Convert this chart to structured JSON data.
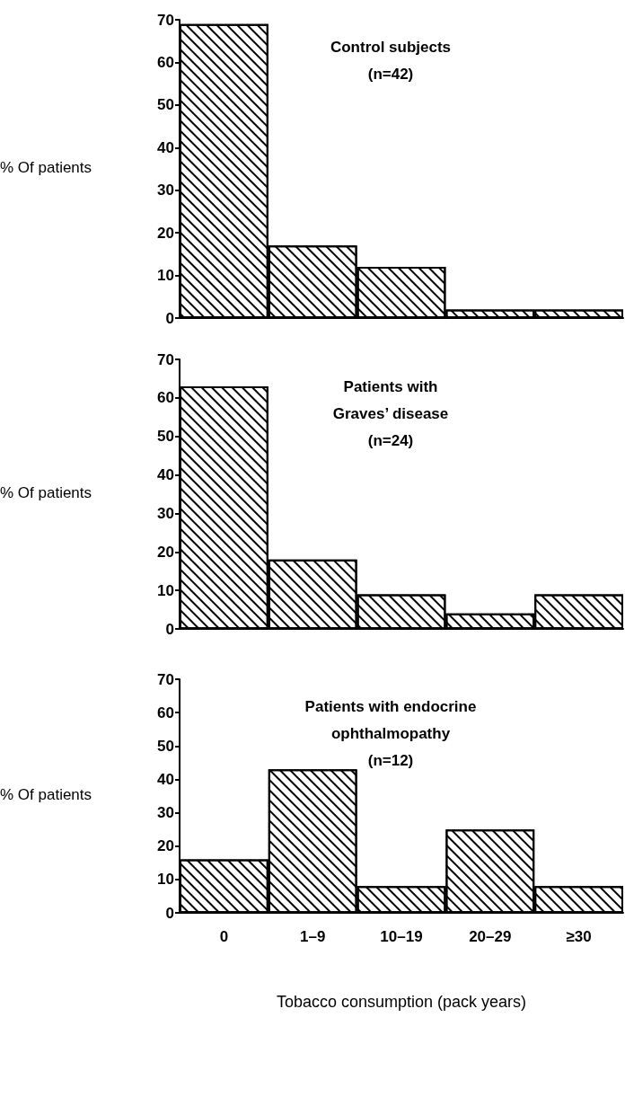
{
  "chart_data": [
    {
      "type": "bar",
      "title": "Control subjects\n(n=42)",
      "ylabel": "% Of patients",
      "categories": [
        null,
        null,
        null,
        null,
        null
      ],
      "values": [
        69,
        17,
        12,
        2,
        2
      ],
      "color": "#ffffff",
      "ylim": [
        0,
        70
      ],
      "yticks": [
        0,
        10,
        20,
        30,
        40,
        50,
        60,
        70
      ],
      "grid": false,
      "tick_labels": "y"
    },
    {
      "type": "bar",
      "title": "Patients with\nGraves’ disease\n(n=24)",
      "ylabel": "% Of patients",
      "categories": [
        null,
        null,
        null,
        null,
        null
      ],
      "values": [
        63,
        18,
        9,
        4,
        9
      ],
      "color": "#ffffff",
      "ylim": [
        0,
        70
      ],
      "yticks": [
        0,
        10,
        20,
        30,
        40,
        50,
        60,
        70
      ],
      "grid": false,
      "tick_labels": "y"
    },
    {
      "type": "bar",
      "title": "Patients with endocrine\nophthalmopathy\n(n=12)",
      "ylabel": "% Of patients",
      "xlabel": "Tobacco consumption (pack years)",
      "categories": [
        "0",
        "1–9",
        "10–19",
        "20–29",
        "≥30"
      ],
      "values": [
        16,
        43,
        8,
        25,
        8
      ],
      "color": "#ffffff",
      "ylim": [
        0,
        70
      ],
      "yticks": [
        0,
        10,
        20,
        30,
        40,
        50,
        60,
        70
      ],
      "grid": false
    }
  ]
}
